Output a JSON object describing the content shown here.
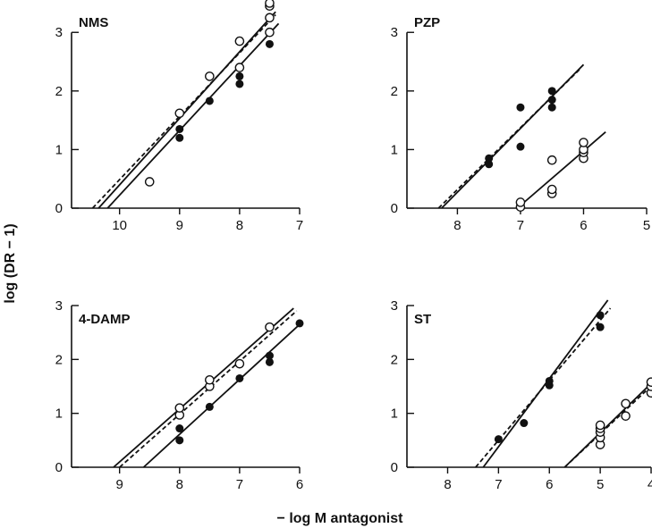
{
  "chart_data": {
    "type": "scatter",
    "ylabel": "log (DR − 1)",
    "xlabel": "− log M antagonist",
    "panels": [
      {
        "title": "NMS",
        "xlim": [
          10.8,
          7.0
        ],
        "ylim": [
          0,
          3.4
        ],
        "xticks": [
          10,
          9,
          8,
          7
        ],
        "yticks": [
          0,
          1,
          2,
          3
        ],
        "open_points": [
          [
            9.5,
            0.45
          ],
          [
            9.0,
            1.62
          ],
          [
            8.5,
            2.25
          ],
          [
            8.0,
            2.85
          ],
          [
            8.0,
            2.4
          ],
          [
            7.5,
            3.0
          ],
          [
            7.5,
            3.25
          ],
          [
            7.5,
            3.45
          ],
          [
            7.5,
            3.5
          ]
        ],
        "filled_points": [
          [
            9.0,
            1.2
          ],
          [
            9.0,
            1.35
          ],
          [
            8.5,
            1.83
          ],
          [
            8.0,
            2.12
          ],
          [
            8.0,
            2.25
          ],
          [
            7.5,
            2.8
          ]
        ],
        "solid_lines": [
          [
            [
              10.35,
              0.0
            ],
            [
              7.4,
              3.35
            ]
          ],
          [
            [
              10.2,
              0.0
            ],
            [
              7.35,
              3.15
            ]
          ]
        ],
        "dashed_lines": [
          [
            [
              10.45,
              0.0
            ],
            [
              7.4,
              3.3
            ]
          ]
        ]
      },
      {
        "title": "PZP",
        "xlim": [
          8.8,
          5.0
        ],
        "ylim": [
          0,
          3.4
        ],
        "xticks": [
          8,
          7,
          6,
          5
        ],
        "yticks": [
          0,
          1,
          2,
          3
        ],
        "open_points": [
          [
            7.0,
            0.02
          ],
          [
            7.0,
            0.1
          ],
          [
            6.5,
            0.25
          ],
          [
            6.5,
            0.32
          ],
          [
            6.5,
            0.82
          ],
          [
            6.0,
            0.85
          ],
          [
            6.0,
            0.95
          ],
          [
            6.0,
            1.0
          ],
          [
            6.0,
            1.12
          ]
        ],
        "filled_points": [
          [
            7.5,
            0.75
          ],
          [
            7.5,
            0.85
          ],
          [
            7.0,
            1.05
          ],
          [
            7.0,
            1.72
          ],
          [
            6.5,
            1.72
          ],
          [
            6.5,
            1.85
          ],
          [
            6.5,
            2.0
          ]
        ],
        "solid_lines": [
          [
            [
              8.25,
              0.0
            ],
            [
              6.0,
              2.45
            ]
          ],
          [
            [
              7.05,
              0.0
            ],
            [
              5.65,
              1.3
            ]
          ]
        ],
        "dashed_lines": [
          [
            [
              8.3,
              0.0
            ],
            [
              6.05,
              2.38
            ]
          ]
        ]
      },
      {
        "title": "4-DAMP",
        "xlim": [
          9.8,
          6.0
        ],
        "ylim": [
          0,
          3.0
        ],
        "xticks": [
          9,
          8,
          7,
          6
        ],
        "yticks": [
          0,
          1,
          2,
          3
        ],
        "open_points": [
          [
            8.0,
            0.97
          ],
          [
            8.0,
            1.1
          ],
          [
            7.5,
            1.5
          ],
          [
            7.5,
            1.62
          ],
          [
            7.0,
            1.92
          ],
          [
            6.5,
            2.6
          ]
        ],
        "filled_points": [
          [
            8.0,
            0.5
          ],
          [
            8.0,
            0.72
          ],
          [
            7.5,
            1.12
          ],
          [
            7.0,
            1.65
          ],
          [
            6.5,
            1.95
          ],
          [
            6.5,
            2.07
          ],
          [
            6.0,
            2.67
          ]
        ],
        "solid_lines": [
          [
            [
              9.1,
              0.0
            ],
            [
              6.1,
              2.95
            ]
          ],
          [
            [
              8.6,
              0.0
            ],
            [
              5.95,
              2.7
            ]
          ]
        ],
        "dashed_lines": [
          [
            [
              9.0,
              0.0
            ],
            [
              6.05,
              2.9
            ]
          ]
        ]
      },
      {
        "title": "ST",
        "xlim": [
          8.8,
          4.0
        ],
        "ylim": [
          0,
          3.0
        ],
        "xticks": [
          8,
          7,
          6,
          5,
          4
        ],
        "yticks": [
          0,
          1,
          2,
          3
        ],
        "open_points": [
          [
            5.0,
            0.42
          ],
          [
            5.0,
            0.55
          ],
          [
            5.0,
            0.65
          ],
          [
            5.0,
            0.72
          ],
          [
            5.0,
            0.78
          ],
          [
            4.5,
            0.95
          ],
          [
            4.5,
            1.18
          ],
          [
            4.0,
            1.38
          ],
          [
            4.0,
            1.5
          ],
          [
            4.0,
            1.58
          ]
        ],
        "filled_points": [
          [
            7.0,
            0.52
          ],
          [
            6.5,
            0.82
          ],
          [
            6.0,
            1.52
          ],
          [
            6.0,
            1.6
          ],
          [
            5.0,
            2.6
          ],
          [
            5.0,
            2.82
          ]
        ],
        "solid_lines": [
          [
            [
              7.3,
              0.0
            ],
            [
              4.85,
              3.1
            ]
          ],
          [
            [
              5.7,
              0.0
            ],
            [
              3.95,
              1.6
            ]
          ]
        ],
        "dashed_lines": [
          [
            [
              7.45,
              0.0
            ],
            [
              4.8,
              2.95
            ]
          ],
          [
            [
              5.7,
              0.0
            ],
            [
              3.95,
              1.55
            ]
          ]
        ]
      }
    ]
  }
}
